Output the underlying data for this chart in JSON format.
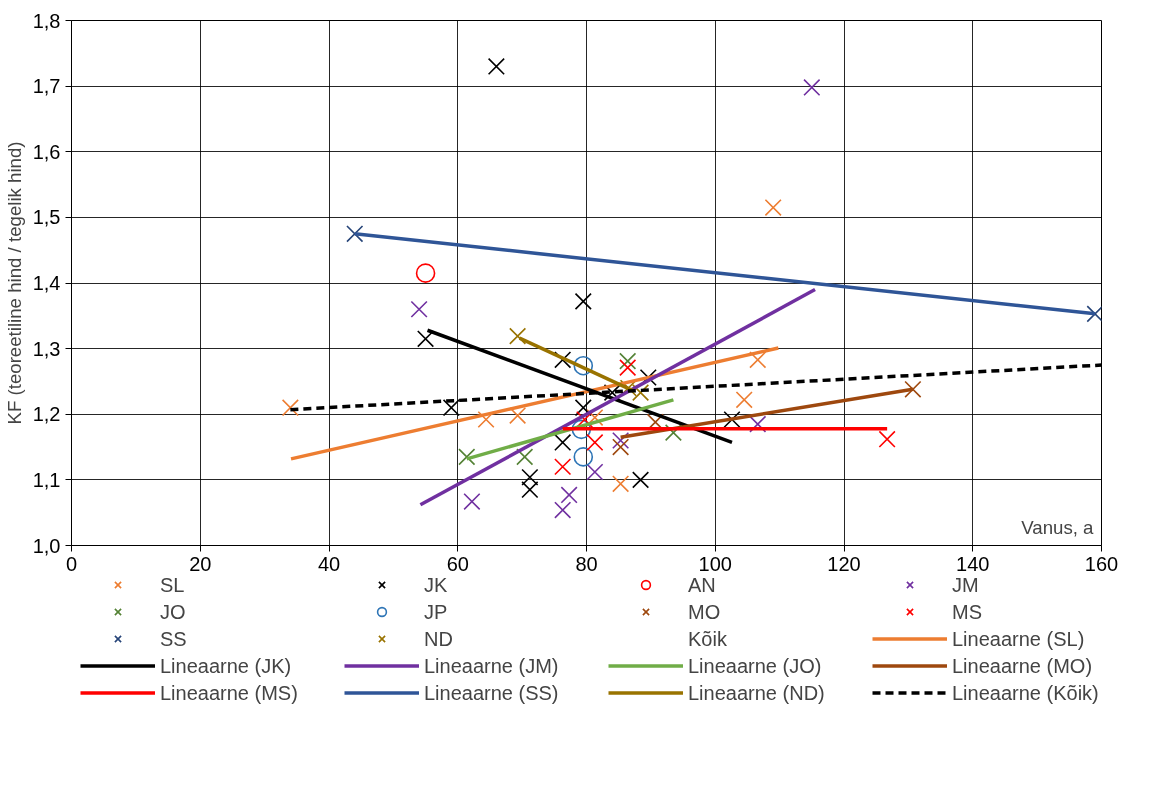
{
  "chart_data": {
    "type": "scatter",
    "xlabel": "Vanus, a",
    "ylabel": "KF (teoreetiline hind / tegelik hind)",
    "xlim": [
      0,
      160
    ],
    "xticks": [
      0,
      20,
      40,
      60,
      80,
      100,
      120,
      140,
      160
    ],
    "ylim": [
      1.0,
      1.8
    ],
    "yticks": [
      {
        "value": 1.0,
        "label": "1,0"
      },
      {
        "value": 1.1,
        "label": "1,1"
      },
      {
        "value": 1.2,
        "label": "1,2"
      },
      {
        "value": 1.3,
        "label": "1,3"
      },
      {
        "value": 1.4,
        "label": "1,4"
      },
      {
        "value": 1.5,
        "label": "1,5"
      },
      {
        "value": 1.6,
        "label": "1,6"
      },
      {
        "value": 1.7,
        "label": "1,7"
      },
      {
        "value": 1.8,
        "label": "1,8"
      }
    ],
    "grid": true,
    "legend": "bottom",
    "series": [
      {
        "name": "SL",
        "marker": "cross",
        "color": "#ed7d31",
        "x": [
          34,
          64.4,
          69.3,
          81.3,
          85.3,
          104.5,
          106.6,
          109
        ],
        "values": [
          1.21,
          1.192,
          1.198,
          1.195,
          1.094,
          1.222,
          1.283,
          1.515
        ]
      },
      {
        "name": "JK",
        "marker": "cross",
        "color": "#000000",
        "x": [
          66,
          55,
          59,
          79.5,
          76.3,
          79.5,
          76.3,
          71.2,
          71.2,
          88.4,
          89.6,
          84,
          102.6
        ],
        "values": [
          1.73,
          1.315,
          1.21,
          1.372,
          1.283,
          1.21,
          1.157,
          1.104,
          1.085,
          1.1,
          1.256,
          1.233,
          1.192
        ]
      },
      {
        "name": "AN",
        "marker": "circle",
        "color": "#ff0000",
        "x": [
          55
        ],
        "values": [
          1.415
        ]
      },
      {
        "name": "JM",
        "marker": "cross",
        "color": "#7030a0",
        "x": [
          54,
          62.2,
          76.3,
          77.3,
          81.3,
          85.3,
          106.6,
          115
        ],
        "values": [
          1.36,
          1.067,
          1.054,
          1.077,
          1.112,
          1.16,
          1.185,
          1.698
        ]
      },
      {
        "name": "JO",
        "marker": "cross",
        "color": "#548235",
        "x": [
          61.4,
          70.4,
          86.4,
          93.5
        ],
        "values": [
          1.135,
          1.135,
          1.281,
          1.172
        ]
      },
      {
        "name": "JP",
        "marker": "circle",
        "color": "#2e75b6",
        "x": [
          79.5,
          79.2,
          79.5
        ],
        "values": [
          1.274,
          1.177,
          1.135
        ]
      },
      {
        "name": "MO",
        "marker": "cross",
        "color": "#9e480e",
        "x": [
          85.3,
          90.7,
          130.7
        ],
        "values": [
          1.15,
          1.188,
          1.238
        ]
      },
      {
        "name": "MS",
        "marker": "cross",
        "color": "#ff0000",
        "x": [
          86.4,
          81.3,
          76.3,
          79.7,
          126.7
        ],
        "values": [
          1.271,
          1.157,
          1.12,
          1.192,
          1.162
        ]
      },
      {
        "name": "SS",
        "marker": "cross",
        "color": "#264478",
        "x": [
          44,
          159
        ],
        "values": [
          1.475,
          1.353
        ]
      },
      {
        "name": "ND",
        "marker": "cross",
        "color": "#997300",
        "x": [
          69.3,
          86.5,
          88.4
        ],
        "values": [
          1.319,
          1.24,
          1.233
        ]
      },
      {
        "name": "Kõik",
        "marker": "none"
      },
      {
        "name": "Lineaarne (SL)",
        "type": "line",
        "line_style": "solid",
        "color": "#ed7d31",
        "x": [
          34.1,
          109.8
        ],
        "values": [
          1.132,
          1.301
        ]
      },
      {
        "name": "Lineaarne (JK)",
        "type": "line",
        "line_style": "solid",
        "color": "#000000",
        "x": [
          55.3,
          102.6
        ],
        "values": [
          1.328,
          1.157
        ]
      },
      {
        "name": "Lineaarne (JM)",
        "type": "line",
        "line_style": "solid",
        "color": "#7030a0",
        "x": [
          54.2,
          115.5
        ],
        "values": [
          1.062,
          1.39
        ]
      },
      {
        "name": "Lineaarne (JO)",
        "type": "line",
        "line_style": "solid",
        "color": "#70ad47",
        "x": [
          61.4,
          93.5
        ],
        "values": [
          1.132,
          1.222
        ]
      },
      {
        "name": "Lineaarne (MO)",
        "type": "line",
        "line_style": "solid",
        "color": "#9e480e",
        "x": [
          85.3,
          130.7
        ],
        "values": [
          1.165,
          1.238
        ]
      },
      {
        "name": "Lineaarne (MS)",
        "type": "line",
        "line_style": "solid",
        "color": "#ff0000",
        "x": [
          76.3,
          126.7
        ],
        "values": [
          1.178,
          1.178
        ]
      },
      {
        "name": "Lineaarne (SS)",
        "type": "line",
        "line_style": "solid",
        "color": "#2f5597",
        "x": [
          44,
          159
        ],
        "values": [
          1.475,
          1.353
        ]
      },
      {
        "name": "Lineaarne (ND)",
        "type": "line",
        "line_style": "solid",
        "color": "#997300",
        "x": [
          69.6,
          87.2
        ],
        "values": [
          1.316,
          1.236
        ]
      },
      {
        "name": "Lineaarne (Kõik)",
        "type": "line",
        "line_style": "dashed",
        "color": "#000000",
        "x": [
          34,
          160
        ],
        "values": [
          1.207,
          1.275
        ]
      }
    ]
  }
}
